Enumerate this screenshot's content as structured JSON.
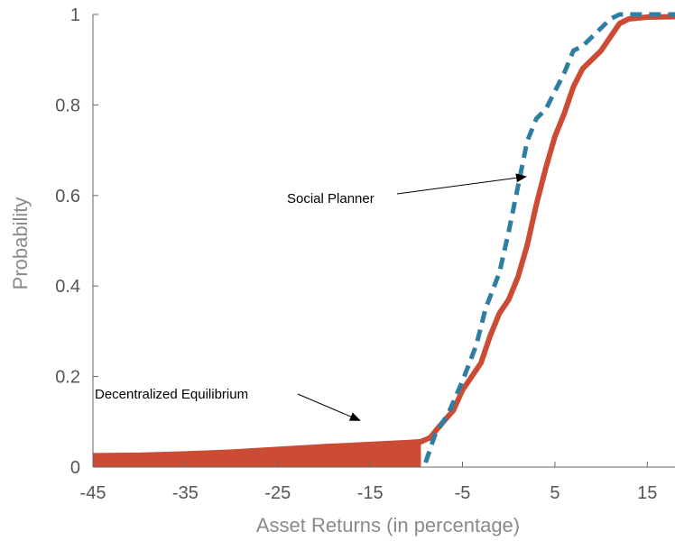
{
  "chart_data": {
    "type": "line",
    "title": "",
    "xlabel": "Asset Returns  (in percentage)",
    "ylabel": "Probability",
    "xlim": [
      -45,
      18
    ],
    "ylim": [
      0,
      1
    ],
    "x_ticks": [
      "-45",
      "-35",
      "-25",
      "-15",
      "-5",
      "5",
      "15"
    ],
    "y_ticks": [
      "0",
      "0.2",
      "0.4",
      "0.6",
      "0.8",
      "1"
    ],
    "grid": false,
    "legend": "none",
    "series": [
      {
        "name": "Decentralized Equilibrium",
        "color": "#cc4b35",
        "style": "solid",
        "points": [
          [
            -45,
            0.025
          ],
          [
            -40,
            0.026
          ],
          [
            -35,
            0.029
          ],
          [
            -30,
            0.033
          ],
          [
            -25,
            0.039
          ],
          [
            -20,
            0.045
          ],
          [
            -15,
            0.05
          ],
          [
            -11,
            0.054
          ],
          [
            -9.5,
            0.056
          ],
          [
            -8.5,
            0.065
          ],
          [
            -7.5,
            0.09
          ],
          [
            -6,
            0.125
          ],
          [
            -5,
            0.17
          ],
          [
            -4,
            0.2
          ],
          [
            -3,
            0.23
          ],
          [
            -2,
            0.29
          ],
          [
            -1,
            0.34
          ],
          [
            0,
            0.37
          ],
          [
            1,
            0.42
          ],
          [
            2,
            0.49
          ],
          [
            3,
            0.58
          ],
          [
            4,
            0.66
          ],
          [
            5,
            0.73
          ],
          [
            6,
            0.78
          ],
          [
            7,
            0.84
          ],
          [
            8,
            0.88
          ],
          [
            9,
            0.9
          ],
          [
            10,
            0.92
          ],
          [
            11,
            0.95
          ],
          [
            12,
            0.98
          ],
          [
            13,
            0.99
          ],
          [
            15,
            0.994
          ],
          [
            18,
            0.995
          ]
        ],
        "shaded_region": {
          "x_from": -45,
          "x_to": -9.5
        }
      },
      {
        "name": "Social Planner",
        "color": "#2e7ea4",
        "style": "dashed",
        "points": [
          [
            -9,
            0.01
          ],
          [
            -8,
            0.07
          ],
          [
            -6.5,
            0.12
          ],
          [
            -5,
            0.19
          ],
          [
            -3.5,
            0.27
          ],
          [
            -2.5,
            0.35
          ],
          [
            -1,
            0.43
          ],
          [
            0,
            0.52
          ],
          [
            1,
            0.62
          ],
          [
            2,
            0.72
          ],
          [
            3,
            0.77
          ],
          [
            4,
            0.79
          ],
          [
            5,
            0.83
          ],
          [
            6,
            0.87
          ],
          [
            7,
            0.92
          ],
          [
            8,
            0.93
          ],
          [
            9,
            0.95
          ],
          [
            10,
            0.97
          ],
          [
            11,
            0.99
          ],
          [
            12,
            1.0
          ],
          [
            18,
            1.0
          ]
        ]
      }
    ],
    "annotations": [
      {
        "text": "Decentralized Equilibrium",
        "points_to": [
          -11,
          0.11
        ]
      },
      {
        "text": "Social Planner",
        "points_to": [
          1.4,
          0.64
        ]
      }
    ]
  }
}
